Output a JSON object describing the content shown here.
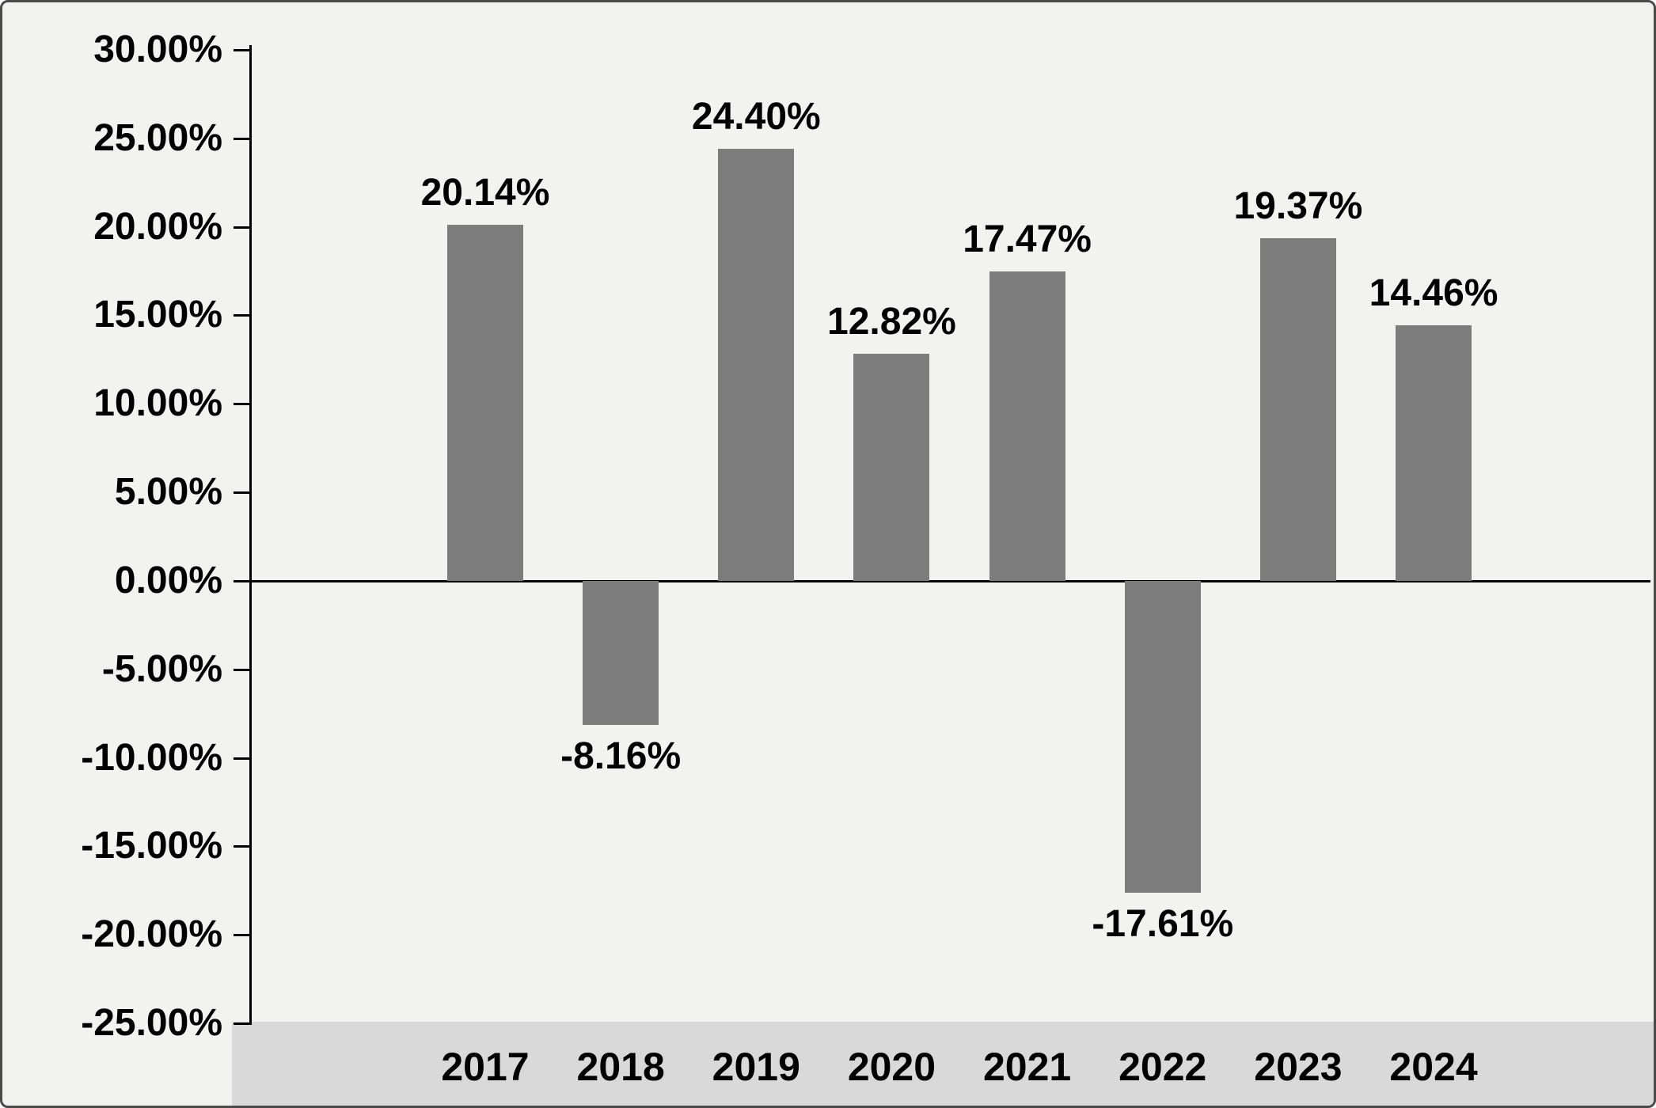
{
  "chart_data": {
    "type": "bar",
    "title": "",
    "xlabel": "",
    "ylabel": "",
    "categories": [
      "2017",
      "2018",
      "2019",
      "2020",
      "2021",
      "2022",
      "2023",
      "2024"
    ],
    "values": [
      20.14,
      -8.16,
      24.4,
      12.82,
      17.47,
      -17.61,
      19.37,
      14.46
    ],
    "data_labels": [
      "20.14%",
      "-8.16%",
      "24.40%",
      "12.82%",
      "17.47%",
      "-17.61%",
      "19.37%",
      "14.46%"
    ],
    "ylim": [
      -25,
      30
    ],
    "ytick_step": 5,
    "ytick_labels": [
      "30.00%",
      "25.00%",
      "20.00%",
      "15.00%",
      "10.00%",
      "5.00%",
      "0.00%",
      "-5.00%",
      "-10.00%",
      "-15.00%",
      "-20.00%",
      "-25.00%"
    ],
    "grid": false,
    "legend_position": "none",
    "bar_color": "#7c7c7c",
    "background_color": "#f2f2f1",
    "x_band_color": "#d9d9d9",
    "axis_color": "#000000"
  }
}
